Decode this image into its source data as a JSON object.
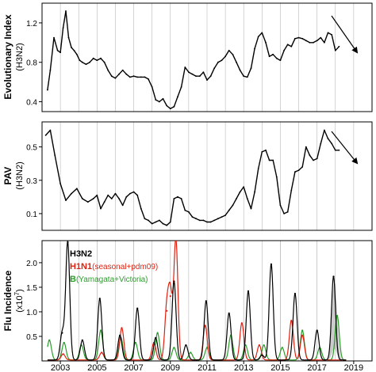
{
  "chart_data": [
    {
      "type": "line",
      "ylabel": "Evolutionary Index",
      "ylabel_sub": "(H3N2)",
      "ylim": [
        0.3,
        1.4
      ],
      "yticks": [
        0.4,
        0.8,
        1.2
      ],
      "xlim": [
        2002.0,
        2020.0
      ],
      "gridlines_x": [
        2003,
        2004,
        2005,
        2006,
        2007,
        2008,
        2009,
        2010,
        2011,
        2012,
        2013,
        2014,
        2015,
        2016,
        2017,
        2018,
        2019
      ],
      "annotation": "arrow pointing down-right (trend)",
      "series": [
        {
          "color": "#000000",
          "x": [
            2002.3,
            2002.45,
            2002.65,
            2002.85,
            2003.0,
            2003.15,
            2003.3,
            2003.45,
            2003.6,
            2003.75,
            2003.9,
            2004.05,
            2004.2,
            2004.4,
            2004.6,
            2004.8,
            2005.0,
            2005.2,
            2005.4,
            2005.6,
            2005.8,
            2006.0,
            2006.2,
            2006.4,
            2006.6,
            2006.8,
            2007.0,
            2007.2,
            2007.4,
            2007.6,
            2007.8,
            2008.0,
            2008.2,
            2008.4,
            2008.6,
            2008.8,
            2009.0,
            2009.2,
            2009.4,
            2009.6,
            2009.8,
            2010.0,
            2010.2,
            2010.4,
            2010.6,
            2010.8,
            2011.0,
            2011.2,
            2011.4,
            2011.6,
            2011.8,
            2012.0,
            2012.2,
            2012.4,
            2012.6,
            2012.8,
            2013.0,
            2013.2,
            2013.4,
            2013.6,
            2013.8,
            2014.0,
            2014.2,
            2014.4,
            2014.6,
            2014.8,
            2015.0,
            2015.2,
            2015.4,
            2015.6,
            2015.8,
            2016.0,
            2016.2,
            2016.4,
            2016.6,
            2016.8,
            2017.0,
            2017.2,
            2017.4,
            2017.6,
            2017.8,
            2018.0,
            2018.2
          ],
          "y": [
            0.52,
            0.72,
            1.05,
            0.92,
            0.9,
            1.15,
            1.32,
            1.05,
            0.95,
            0.92,
            0.88,
            0.82,
            0.8,
            0.78,
            0.8,
            0.84,
            0.82,
            0.84,
            0.8,
            0.72,
            0.66,
            0.64,
            0.68,
            0.72,
            0.68,
            0.65,
            0.66,
            0.65,
            0.65,
            0.65,
            0.63,
            0.55,
            0.42,
            0.4,
            0.43,
            0.36,
            0.33,
            0.35,
            0.45,
            0.55,
            0.75,
            0.7,
            0.68,
            0.66,
            0.66,
            0.7,
            0.62,
            0.66,
            0.74,
            0.8,
            0.82,
            0.86,
            0.92,
            0.88,
            0.8,
            0.72,
            0.66,
            0.65,
            0.74,
            0.94,
            1.06,
            1.1,
            1.0,
            0.86,
            0.88,
            0.84,
            0.82,
            0.92,
            0.98,
            0.96,
            1.04,
            1.05,
            1.04,
            1.02,
            1.0,
            1.0,
            1.02,
            1.05,
            1.0,
            1.1,
            1.08,
            0.92,
            0.96
          ]
        }
      ]
    },
    {
      "type": "line",
      "ylabel": "PAV",
      "ylabel_sub": "(H3N2)",
      "ylim": [
        0.0,
        0.65
      ],
      "yticks": [
        0.1,
        0.3,
        0.5
      ],
      "xlim": [
        2002.0,
        2020.0
      ],
      "gridlines_x": [
        2003,
        2004,
        2005,
        2006,
        2007,
        2008,
        2009,
        2010,
        2011,
        2012,
        2013,
        2014,
        2015,
        2016,
        2017,
        2018,
        2019
      ],
      "annotation": "arrow pointing down-right (trend)",
      "series": [
        {
          "color": "#000000",
          "x": [
            2002.2,
            2002.45,
            2002.7,
            2003.0,
            2003.3,
            2003.6,
            2003.9,
            2004.2,
            2004.5,
            2004.8,
            2005.0,
            2005.2,
            2005.4,
            2005.6,
            2005.8,
            2006.0,
            2006.2,
            2006.4,
            2006.6,
            2006.8,
            2007.0,
            2007.2,
            2007.4,
            2007.6,
            2007.8,
            2008.0,
            2008.2,
            2008.4,
            2008.6,
            2008.8,
            2009.0,
            2009.2,
            2009.4,
            2009.6,
            2009.8,
            2010.0,
            2010.2,
            2010.4,
            2010.6,
            2010.8,
            2011.0,
            2011.2,
            2011.4,
            2011.6,
            2011.8,
            2012.0,
            2012.2,
            2012.4,
            2012.6,
            2012.8,
            2013.0,
            2013.2,
            2013.4,
            2013.6,
            2013.8,
            2014.0,
            2014.2,
            2014.4,
            2014.6,
            2014.8,
            2015.0,
            2015.2,
            2015.4,
            2015.6,
            2015.8,
            2016.0,
            2016.2,
            2016.4,
            2016.6,
            2016.8,
            2017.0,
            2017.2,
            2017.4,
            2017.6,
            2017.8,
            2018.0,
            2018.2
          ],
          "y": [
            0.57,
            0.6,
            0.45,
            0.28,
            0.18,
            0.22,
            0.25,
            0.19,
            0.17,
            0.19,
            0.21,
            0.13,
            0.17,
            0.21,
            0.19,
            0.22,
            0.19,
            0.15,
            0.2,
            0.22,
            0.23,
            0.21,
            0.13,
            0.07,
            0.06,
            0.04,
            0.05,
            0.06,
            0.04,
            0.03,
            0.05,
            0.19,
            0.2,
            0.19,
            0.12,
            0.11,
            0.08,
            0.07,
            0.06,
            0.06,
            0.05,
            0.05,
            0.06,
            0.07,
            0.08,
            0.09,
            0.12,
            0.15,
            0.19,
            0.23,
            0.26,
            0.19,
            0.13,
            0.23,
            0.37,
            0.47,
            0.48,
            0.42,
            0.42,
            0.32,
            0.15,
            0.1,
            0.11,
            0.24,
            0.35,
            0.36,
            0.38,
            0.5,
            0.45,
            0.42,
            0.43,
            0.52,
            0.6,
            0.55,
            0.52,
            0.48,
            0.48
          ]
        }
      ]
    },
    {
      "type": "line",
      "ylabel": "Flu Incidence",
      "ylabel_sub": "(x10",
      "ylabel_sup": "7",
      "ylabel_close": ")",
      "ylim": [
        0.0,
        2.45
      ],
      "yticks": [
        "0.5",
        "1.0",
        "1.5",
        "2.0"
      ],
      "xlim": [
        2002.0,
        2020.0
      ],
      "xticks": [
        "2003",
        "2005",
        "2007",
        "2009",
        "2011",
        "2013",
        "2015",
        "2017",
        "2019"
      ],
      "legend_placement": "top-left",
      "forecast_band": {
        "color": "#bbbbbb",
        "peak_year": 2017.95,
        "half_width": 0.45,
        "max_upper": 1.6
      },
      "series": [
        {
          "name": "H3N2",
          "color": "#000000",
          "peaks": [
            [
              2003.1,
              0.55
            ],
            [
              2003.4,
              2.4
            ],
            [
              2004.2,
              0.4
            ],
            [
              2005.15,
              1.25
            ],
            [
              2006.25,
              0.5
            ],
            [
              2007.2,
              1.05
            ],
            [
              2008.2,
              0.45
            ],
            [
              2009.2,
              1.6
            ],
            [
              2009.85,
              0.3
            ],
            [
              2010.95,
              1.2
            ],
            [
              2012.2,
              0.95
            ],
            [
              2013.25,
              1.4
            ],
            [
              2014.0,
              0.1
            ],
            [
              2014.5,
              1.95
            ],
            [
              2015.8,
              1.35
            ],
            [
              2017.0,
              0.6
            ],
            [
              2017.9,
              1.7
            ]
          ]
        },
        {
          "name": "H1N1",
          "name_suffix": "(seasonal+pdm09)",
          "color": "#e02010",
          "peaks": [
            [
              2003.15,
              0.12
            ],
            [
              2005.25,
              0.15
            ],
            [
              2006.35,
              0.65
            ],
            [
              2008.1,
              0.35
            ],
            [
              2008.8,
              1.0
            ],
            [
              2009.0,
              1.3
            ],
            [
              2009.3,
              2.45
            ],
            [
              2010.9,
              0.7
            ],
            [
              2012.9,
              0.75
            ],
            [
              2013.85,
              0.3
            ],
            [
              2015.6,
              0.8
            ],
            [
              2016.2,
              0.5
            ]
          ]
        },
        {
          "name": "B",
          "name_suffix": "(Yamagata+Victoria)",
          "color": "#2a9d2a",
          "peaks": [
            [
              2002.4,
              0.4
            ],
            [
              2003.2,
              0.35
            ],
            [
              2004.15,
              0.3
            ],
            [
              2005.2,
              0.6
            ],
            [
              2006.3,
              0.45
            ],
            [
              2007.1,
              0.35
            ],
            [
              2008.3,
              0.55
            ],
            [
              2009.2,
              0.25
            ],
            [
              2010.1,
              0.15
            ],
            [
              2011.0,
              0.25
            ],
            [
              2012.3,
              0.5
            ],
            [
              2013.1,
              0.3
            ],
            [
              2014.1,
              0.3
            ],
            [
              2015.1,
              0.25
            ],
            [
              2016.2,
              0.6
            ],
            [
              2017.15,
              0.25
            ],
            [
              2018.1,
              0.9
            ]
          ]
        }
      ]
    }
  ]
}
